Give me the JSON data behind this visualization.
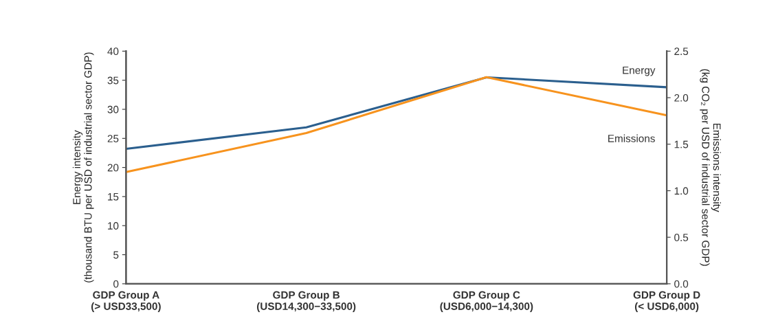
{
  "chart_data": {
    "type": "line",
    "categories": [
      "GDP Group A\n(> USD33,500)",
      "GDP Group B\n(USD14,300−33,500)",
      "GDP Group C\n(USD6,000−14,300)",
      "GDP Group D\n(< USD6,000)"
    ],
    "series": [
      {
        "name": "Energy",
        "color": "#2b5f8e",
        "values": [
          23.2,
          26.9,
          35.5,
          33.8
        ]
      },
      {
        "name": "Emissions",
        "color": "#f7931e",
        "axis": "y2",
        "values": [
          1.2,
          1.62,
          2.22,
          1.81
        ]
      }
    ],
    "ylabel": "Energy intensity\n(thousand BTU per USD of industrial sector GDP)",
    "y2label": "Emissions intensity\n(kg CO₂ per USD of industrial sector GDP)",
    "ylim": [
      0,
      40
    ],
    "yticks": [
      0,
      5,
      10,
      15,
      20,
      25,
      30,
      35,
      40
    ],
    "y2lim": [
      0,
      2.5
    ],
    "y2ticks": [
      {
        "value": 0,
        "label": "0.0"
      },
      0.5,
      {
        "value": 1,
        "label": "1.0"
      },
      1.5,
      {
        "value": 2,
        "label": "2.0"
      },
      2.5
    ],
    "grid": false,
    "legend": false,
    "marker": "none",
    "line_style": "solid"
  }
}
